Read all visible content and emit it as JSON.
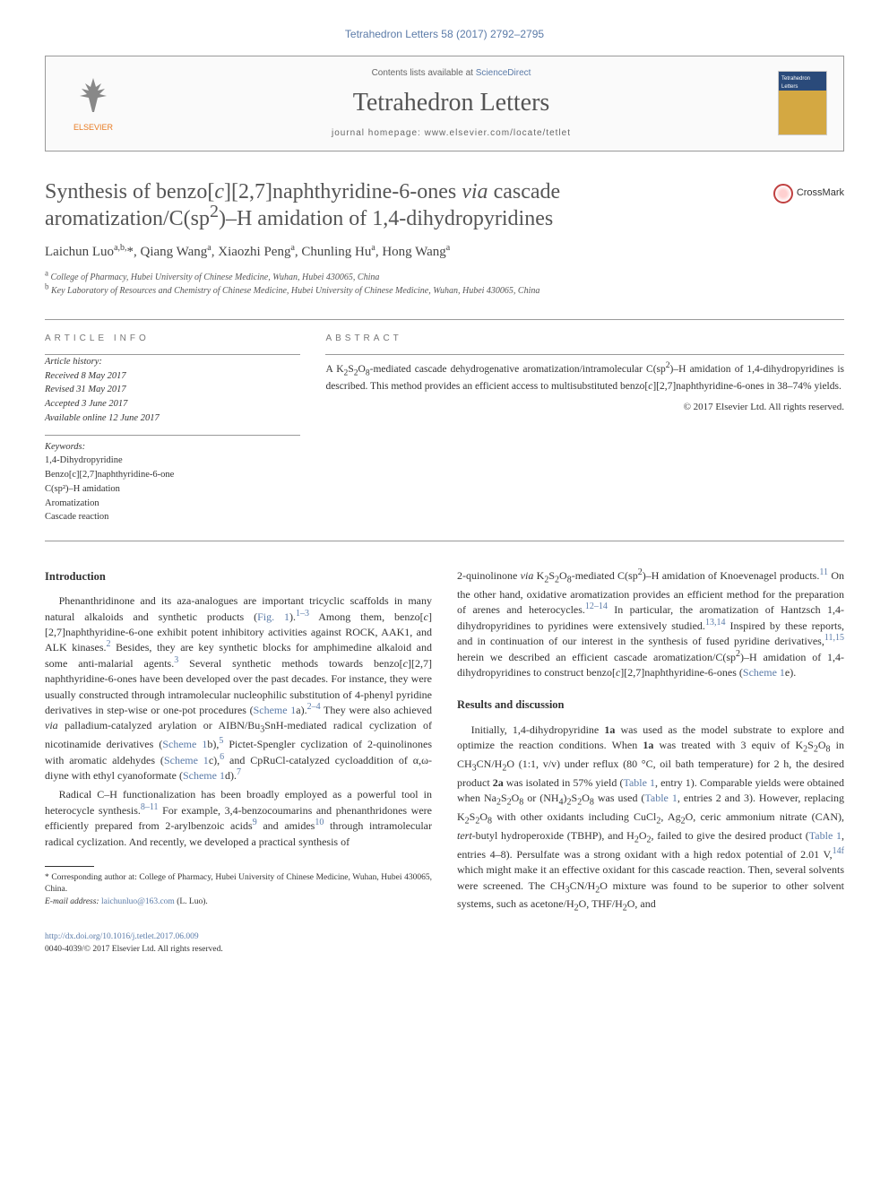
{
  "journal_ref": "Tetrahedron Letters 58 (2017) 2792–2795",
  "header": {
    "contents_prefix": "Contents lists available at ",
    "contents_link": "ScienceDirect",
    "journal_name": "Tetrahedron Letters",
    "homepage_prefix": "journal homepage: ",
    "homepage_url": "www.elsevier.com/locate/tetlet",
    "publisher_logo_label": "ELSEVIER"
  },
  "title_html": "Synthesis of benzo[<i>c</i>][2,7]naphthyridine-6-ones <i>via</i> cascade aromatization/C(sp<sup>2</sup>)–H amidation of 1,4-dihydropyridines",
  "crossmark_label": "CrossMark",
  "authors_html": "Laichun Luo<sup>a,b,</sup>*, Qiang Wang<sup>a</sup>, Xiaozhi Peng<sup>a</sup>, Chunling Hu<sup>a</sup>, Hong Wang<sup>a</sup>",
  "affiliations": [
    {
      "sup": "a",
      "text": "College of Pharmacy, Hubei University of Chinese Medicine, Wuhan, Hubei 430065, China"
    },
    {
      "sup": "b",
      "text": "Key Laboratory of Resources and Chemistry of Chinese Medicine, Hubei University of Chinese Medicine, Wuhan, Hubei 430065, China"
    }
  ],
  "info": {
    "heading": "ARTICLE INFO",
    "history_heading": "Article history:",
    "history": [
      "Received 8 May 2017",
      "Revised 31 May 2017",
      "Accepted 3 June 2017",
      "Available online 12 June 2017"
    ],
    "keywords_heading": "Keywords:",
    "keywords": [
      "1,4-Dihydropyridine",
      "Benzo[c][2,7]naphthyridine-6-one",
      "C(sp²)–H amidation",
      "Aromatization",
      "Cascade reaction"
    ]
  },
  "abstract": {
    "heading": "ABSTRACT",
    "text_html": "A K<sub>2</sub>S<sub>2</sub>O<sub>8</sub>-mediated cascade dehydrogenative aromatization/intramolecular C(sp<sup>2</sup>)–H amidation of 1,4-dihydropyridines is described. This method provides an efficient access to multisubstituted benzo[<i>c</i>][2,7]naphthyridine-6-ones in 38–74% yields.",
    "copyright": "© 2017 Elsevier Ltd. All rights reserved."
  },
  "sections": {
    "intro_heading": "Introduction",
    "intro_p1_html": "Phenanthridinone and its aza-analogues are important tricyclic scaffolds in many natural alkaloids and synthetic products (<a class=\"ref\" href=\"#\">Fig. 1</a>).<sup><a class=\"ref\" href=\"#\">1–3</a></sup> Among them, benzo[<i>c</i>][2,7]naphthyridine-6-one exhibit potent inhibitory activities against ROCK, AAK1, and ALK kinases.<sup><a class=\"ref\" href=\"#\">2</a></sup> Besides, they are key synthetic blocks for amphimedine alkaloid and some anti-malarial agents.<sup><a class=\"ref\" href=\"#\">3</a></sup> Several synthetic methods towards benzo[<i>c</i>][2,7] naphthyridine-6-ones have been developed over the past decades. For instance, they were usually constructed through intramolecular nucleophilic substitution of 4-phenyl pyridine derivatives in step-wise or one-pot procedures (<a class=\"ref\" href=\"#\">Scheme 1</a>a).<sup><a class=\"ref\" href=\"#\">2–4</a></sup> They were also achieved <i>via</i> palladium-catalyzed arylation or AIBN/Bu<sub>3</sub>SnH-mediated radical cyclization of nicotinamide derivatives (<a class=\"ref\" href=\"#\">Scheme 1</a>b),<sup><a class=\"ref\" href=\"#\">5</a></sup> Pictet-Spengler cyclization of 2-quinolinones with aromatic aldehydes (<a class=\"ref\" href=\"#\">Scheme 1</a>c),<sup><a class=\"ref\" href=\"#\">6</a></sup> and CpRuCl-catalyzed cycloaddition of α,ω-diyne with ethyl cyanoformate (<a class=\"ref\" href=\"#\">Scheme 1</a>d).<sup><a class=\"ref\" href=\"#\">7</a></sup>",
    "intro_p2_html": "Radical C–H functionalization has been broadly employed as a powerful tool in heterocycle synthesis.<sup><a class=\"ref\" href=\"#\">8–11</a></sup> For example, 3,4-benzocoumarins and phenanthridones were efficiently prepared from 2-arylbenzoic acids<sup><a class=\"ref\" href=\"#\">9</a></sup> and amides<sup><a class=\"ref\" href=\"#\">10</a></sup> through intramolecular radical cyclization. And recently, we developed a practical synthesis of",
    "col2_p1_html": "2-quinolinone <i>via</i> K<sub>2</sub>S<sub>2</sub>O<sub>8</sub>-mediated C(sp<sup>2</sup>)–H amidation of Knoevenagel products.<sup><a class=\"ref\" href=\"#\">11</a></sup> On the other hand, oxidative aromatization provides an efficient method for the preparation of arenes and heterocycles.<sup><a class=\"ref\" href=\"#\">12–14</a></sup> In particular, the aromatization of Hantzsch 1,4-dihydropyridines to pyridines were extensively studied.<sup><a class=\"ref\" href=\"#\">13,14</a></sup> Inspired by these reports, and in continuation of our interest in the synthesis of fused pyridine derivatives,<sup><a class=\"ref\" href=\"#\">11,15</a></sup> herein we described an efficient cascade aromatization/C(sp<sup>2</sup>)–H amidation of 1,4-dihydropyridines to construct benzo[<i>c</i>][2,7]naphthyridine-6-ones (<a class=\"ref\" href=\"#\">Scheme 1</a>e).",
    "results_heading": "Results and discussion",
    "results_p1_html": "Initially, 1,4-dihydropyridine <b>1a</b> was used as the model substrate to explore and optimize the reaction conditions. When <b>1a</b> was treated with 3 equiv of K<sub>2</sub>S<sub>2</sub>O<sub>8</sub> in CH<sub>3</sub>CN/H<sub>2</sub>O (1:1, v/v) under reflux (80 °C, oil bath temperature) for 2 h, the desired product <b>2a</b> was isolated in 57% yield (<a class=\"ref\" href=\"#\">Table 1</a>, entry 1). Comparable yields were obtained when Na<sub>2</sub>S<sub>2</sub>O<sub>8</sub> or (NH<sub>4</sub>)<sub>2</sub>S<sub>2</sub>O<sub>8</sub> was used (<a class=\"ref\" href=\"#\">Table 1</a>, entries 2 and 3). However, replacing K<sub>2</sub>S<sub>2</sub>O<sub>8</sub> with other oxidants including CuCl<sub>2</sub>, Ag<sub>2</sub>O, ceric ammonium nitrate (CAN), <i>tert</i>-butyl hydroperoxide (TBHP), and H<sub>2</sub>O<sub>2</sub>, failed to give the desired product (<a class=\"ref\" href=\"#\">Table 1</a>, entries 4–8). Persulfate was a strong oxidant with a high redox potential of 2.01 V,<sup><a class=\"ref\" href=\"#\">14f</a></sup> which might make it an effective oxidant for this cascade reaction. Then, several solvents were screened. The CH<sub>3</sub>CN/H<sub>2</sub>O mixture was found to be superior to other solvent systems, such as acetone/H<sub>2</sub>O, THF/H<sub>2</sub>O, and"
  },
  "footnotes": {
    "corresponding_html": "* Corresponding author at: College of Pharmacy, Hubei University of Chinese Medicine, Wuhan, Hubei 430065, China.",
    "email_label": "E-mail address:",
    "email": "laichunluo@163.com",
    "email_author": "(L. Luo)."
  },
  "footer": {
    "doi_url": "http://dx.doi.org/10.1016/j.tetlet.2017.06.009",
    "issn_line": "0040-4039/© 2017 Elsevier Ltd. All rights reserved."
  },
  "colors": {
    "link": "#5b7ba8",
    "text": "#333333",
    "heading_gray": "#555555",
    "rule": "#999999"
  }
}
